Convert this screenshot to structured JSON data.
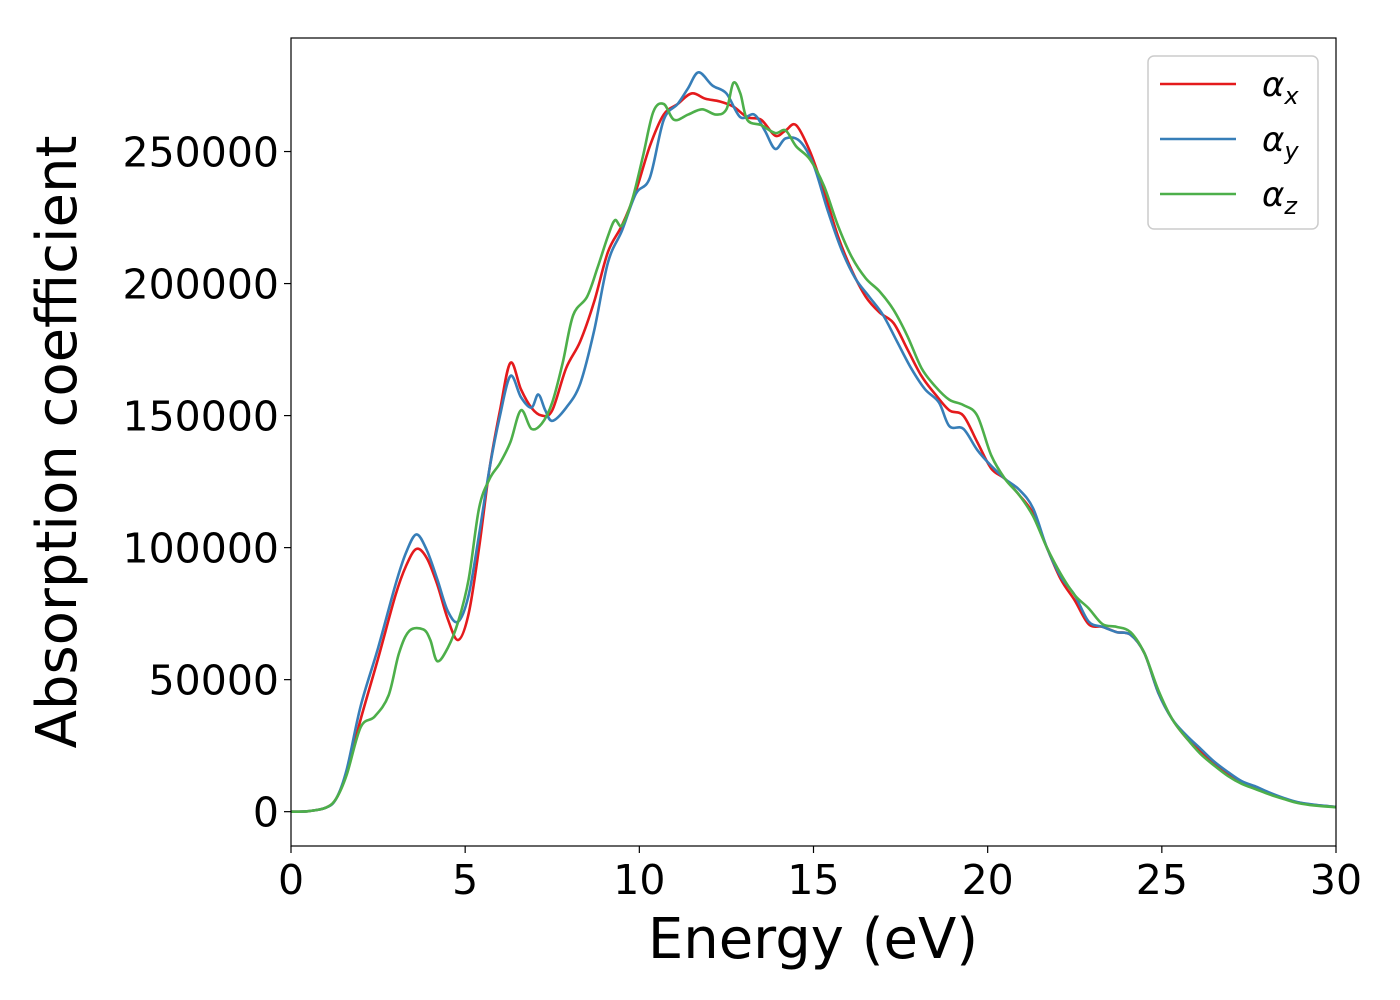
{
  "chart_data": {
    "type": "line",
    "title": "",
    "xlabel": "Energy (eV)",
    "ylabel": "Absorption coefficient",
    "xlim": [
      0,
      30
    ],
    "ylim": [
      -13000,
      293000
    ],
    "xticks": [
      0,
      5,
      10,
      15,
      20,
      25,
      30
    ],
    "xtick_labels": [
      "0",
      "5",
      "10",
      "15",
      "20",
      "25",
      "30"
    ],
    "yticks": [
      0,
      50000,
      100000,
      150000,
      200000,
      250000
    ],
    "ytick_labels": [
      "0",
      "50000",
      "100000",
      "150000",
      "200000",
      "250000"
    ],
    "grid": false,
    "legend_position": "top-right",
    "series": [
      {
        "name": "α",
        "subscript": "x",
        "color": "#e41a1c",
        "points": [
          [
            0,
            0
          ],
          [
            0.5,
            200
          ],
          [
            1.0,
            1500
          ],
          [
            1.3,
            5000
          ],
          [
            1.6,
            15000
          ],
          [
            2.0,
            35000
          ],
          [
            2.5,
            58000
          ],
          [
            3.0,
            82000
          ],
          [
            3.3,
            93000
          ],
          [
            3.6,
            99500
          ],
          [
            3.9,
            96000
          ],
          [
            4.2,
            86000
          ],
          [
            4.5,
            73000
          ],
          [
            4.8,
            65000
          ],
          [
            5.1,
            75000
          ],
          [
            5.4,
            100000
          ],
          [
            5.7,
            130000
          ],
          [
            6.0,
            152000
          ],
          [
            6.3,
            170000
          ],
          [
            6.6,
            160000
          ],
          [
            6.9,
            153000
          ],
          [
            7.2,
            150000
          ],
          [
            7.5,
            152000
          ],
          [
            7.9,
            168000
          ],
          [
            8.3,
            178000
          ],
          [
            8.7,
            193000
          ],
          [
            9.1,
            212000
          ],
          [
            9.5,
            222000
          ],
          [
            9.9,
            235000
          ],
          [
            10.3,
            252000
          ],
          [
            10.7,
            264000
          ],
          [
            11.1,
            268000
          ],
          [
            11.5,
            272000
          ],
          [
            11.9,
            270000
          ],
          [
            12.3,
            269000
          ],
          [
            12.7,
            267000
          ],
          [
            13.1,
            263000
          ],
          [
            13.5,
            262000
          ],
          [
            13.9,
            256000
          ],
          [
            14.2,
            258000
          ],
          [
            14.5,
            260000
          ],
          [
            14.9,
            250000
          ],
          [
            15.3,
            235000
          ],
          [
            15.7,
            218000
          ],
          [
            16.1,
            205000
          ],
          [
            16.5,
            195000
          ],
          [
            16.9,
            189000
          ],
          [
            17.3,
            185000
          ],
          [
            17.7,
            175000
          ],
          [
            18.1,
            165000
          ],
          [
            18.5,
            158000
          ],
          [
            18.9,
            152000
          ],
          [
            19.3,
            150000
          ],
          [
            19.7,
            140000
          ],
          [
            20.1,
            130000
          ],
          [
            20.5,
            126000
          ],
          [
            20.9,
            120000
          ],
          [
            21.3,
            113000
          ],
          [
            21.7,
            100000
          ],
          [
            22.1,
            88000
          ],
          [
            22.5,
            80000
          ],
          [
            22.9,
            71000
          ],
          [
            23.3,
            70000
          ],
          [
            23.7,
            68000
          ],
          [
            24.1,
            67000
          ],
          [
            24.5,
            60000
          ],
          [
            24.9,
            45000
          ],
          [
            25.3,
            35000
          ],
          [
            25.7,
            28000
          ],
          [
            26.1,
            23000
          ],
          [
            26.5,
            18000
          ],
          [
            26.9,
            14000
          ],
          [
            27.3,
            11000
          ],
          [
            27.7,
            9000
          ],
          [
            28.1,
            7000
          ],
          [
            28.5,
            5000
          ],
          [
            28.9,
            3500
          ],
          [
            29.4,
            2500
          ],
          [
            30,
            1800
          ]
        ]
      },
      {
        "name": "α",
        "subscript": "y",
        "color": "#377eb8",
        "points": [
          [
            0,
            0
          ],
          [
            0.5,
            200
          ],
          [
            1.0,
            1500
          ],
          [
            1.3,
            5000
          ],
          [
            1.6,
            16000
          ],
          [
            2.0,
            40000
          ],
          [
            2.5,
            62000
          ],
          [
            3.0,
            86000
          ],
          [
            3.3,
            98000
          ],
          [
            3.6,
            105000
          ],
          [
            3.9,
            99000
          ],
          [
            4.2,
            88000
          ],
          [
            4.5,
            76000
          ],
          [
            4.8,
            72000
          ],
          [
            5.1,
            82000
          ],
          [
            5.4,
            105000
          ],
          [
            5.7,
            130000
          ],
          [
            6.0,
            150000
          ],
          [
            6.3,
            165000
          ],
          [
            6.6,
            157000
          ],
          [
            6.9,
            153000
          ],
          [
            7.1,
            158000
          ],
          [
            7.3,
            152000
          ],
          [
            7.5,
            148000
          ],
          [
            7.9,
            153000
          ],
          [
            8.3,
            162000
          ],
          [
            8.7,
            182000
          ],
          [
            9.1,
            208000
          ],
          [
            9.5,
            220000
          ],
          [
            9.9,
            234000
          ],
          [
            10.3,
            240000
          ],
          [
            10.7,
            262000
          ],
          [
            11.1,
            268000
          ],
          [
            11.4,
            274000
          ],
          [
            11.7,
            280000
          ],
          [
            12.1,
            275000
          ],
          [
            12.5,
            272000
          ],
          [
            12.9,
            263000
          ],
          [
            13.3,
            264000
          ],
          [
            13.6,
            258000
          ],
          [
            13.9,
            251000
          ],
          [
            14.2,
            255000
          ],
          [
            14.6,
            254000
          ],
          [
            15.0,
            245000
          ],
          [
            15.4,
            228000
          ],
          [
            15.8,
            213000
          ],
          [
            16.2,
            202000
          ],
          [
            16.6,
            195000
          ],
          [
            17.0,
            188000
          ],
          [
            17.4,
            178000
          ],
          [
            17.8,
            168000
          ],
          [
            18.2,
            160000
          ],
          [
            18.6,
            155000
          ],
          [
            18.9,
            146000
          ],
          [
            19.3,
            145000
          ],
          [
            19.7,
            137000
          ],
          [
            20.1,
            131000
          ],
          [
            20.5,
            126000
          ],
          [
            20.9,
            122000
          ],
          [
            21.3,
            115000
          ],
          [
            21.7,
            100000
          ],
          [
            22.1,
            89000
          ],
          [
            22.5,
            82000
          ],
          [
            22.9,
            72000
          ],
          [
            23.3,
            70000
          ],
          [
            23.7,
            68000
          ],
          [
            24.1,
            67000
          ],
          [
            24.5,
            60000
          ],
          [
            24.9,
            45000
          ],
          [
            25.3,
            35000
          ],
          [
            25.7,
            29000
          ],
          [
            26.1,
            24000
          ],
          [
            26.5,
            19000
          ],
          [
            26.9,
            15000
          ],
          [
            27.3,
            11500
          ],
          [
            27.7,
            9500
          ],
          [
            28.1,
            7200
          ],
          [
            28.5,
            5200
          ],
          [
            28.9,
            3600
          ],
          [
            29.4,
            2600
          ],
          [
            30,
            1800
          ]
        ]
      },
      {
        "name": "α",
        "subscript": "z",
        "color": "#4daf4a",
        "points": [
          [
            0,
            0
          ],
          [
            0.5,
            200
          ],
          [
            1.0,
            1500
          ],
          [
            1.3,
            5000
          ],
          [
            1.6,
            14000
          ],
          [
            2.0,
            32000
          ],
          [
            2.4,
            36000
          ],
          [
            2.8,
            44000
          ],
          [
            3.1,
            60000
          ],
          [
            3.4,
            68500
          ],
          [
            3.8,
            69000
          ],
          [
            4.0,
            65000
          ],
          [
            4.2,
            57000
          ],
          [
            4.5,
            62000
          ],
          [
            4.8,
            72000
          ],
          [
            5.1,
            88000
          ],
          [
            5.4,
            115000
          ],
          [
            5.7,
            126000
          ],
          [
            6.0,
            132000
          ],
          [
            6.3,
            140000
          ],
          [
            6.6,
            152000
          ],
          [
            6.9,
            145000
          ],
          [
            7.2,
            147000
          ],
          [
            7.5,
            155000
          ],
          [
            7.8,
            170000
          ],
          [
            8.1,
            188000
          ],
          [
            8.5,
            195000
          ],
          [
            8.8,
            206000
          ],
          [
            9.1,
            218000
          ],
          [
            9.3,
            224000
          ],
          [
            9.5,
            222000
          ],
          [
            9.8,
            232000
          ],
          [
            10.1,
            248000
          ],
          [
            10.4,
            265000
          ],
          [
            10.7,
            268000
          ],
          [
            11.0,
            262000
          ],
          [
            11.4,
            264000
          ],
          [
            11.8,
            266000
          ],
          [
            12.2,
            264000
          ],
          [
            12.5,
            266000
          ],
          [
            12.7,
            276000
          ],
          [
            12.9,
            272000
          ],
          [
            13.1,
            262000
          ],
          [
            13.5,
            260000
          ],
          [
            13.9,
            257000
          ],
          [
            14.2,
            258000
          ],
          [
            14.5,
            252000
          ],
          [
            14.9,
            247000
          ],
          [
            15.3,
            237000
          ],
          [
            15.7,
            222000
          ],
          [
            16.1,
            210000
          ],
          [
            16.5,
            202000
          ],
          [
            16.9,
            197000
          ],
          [
            17.3,
            190000
          ],
          [
            17.7,
            180000
          ],
          [
            18.1,
            168000
          ],
          [
            18.5,
            161000
          ],
          [
            18.9,
            156000
          ],
          [
            19.3,
            154000
          ],
          [
            19.7,
            150000
          ],
          [
            20.1,
            135000
          ],
          [
            20.5,
            126000
          ],
          [
            20.9,
            120000
          ],
          [
            21.3,
            112000
          ],
          [
            21.7,
            100000
          ],
          [
            22.1,
            90000
          ],
          [
            22.5,
            82000
          ],
          [
            22.9,
            77000
          ],
          [
            23.3,
            71000
          ],
          [
            23.7,
            70000
          ],
          [
            24.1,
            68000
          ],
          [
            24.5,
            60000
          ],
          [
            24.9,
            46000
          ],
          [
            25.3,
            35000
          ],
          [
            25.7,
            28000
          ],
          [
            26.1,
            22000
          ],
          [
            26.5,
            17500
          ],
          [
            26.9,
            13500
          ],
          [
            27.3,
            10500
          ],
          [
            27.7,
            8500
          ],
          [
            28.1,
            6500
          ],
          [
            28.5,
            4800
          ],
          [
            28.9,
            3300
          ],
          [
            29.4,
            2300
          ],
          [
            30,
            1700
          ]
        ]
      }
    ]
  }
}
